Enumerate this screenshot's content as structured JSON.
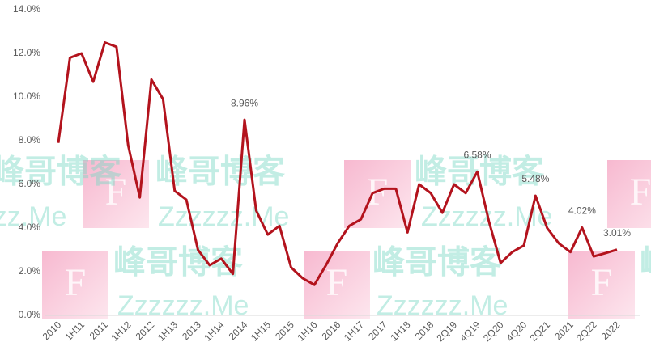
{
  "chart_data": {
    "type": "line",
    "categories": [
      "2010",
      null,
      "1H11",
      null,
      "2011",
      null,
      "1H12",
      null,
      "2012",
      null,
      "1H13",
      null,
      "2013",
      null,
      "1H14",
      null,
      "2014",
      null,
      "1H15",
      null,
      "2015",
      null,
      "1H16",
      null,
      "2016",
      null,
      "1H17",
      null,
      "2017",
      null,
      "1H18",
      null,
      "2018",
      null,
      "2Q19",
      null,
      "4Q19",
      null,
      "2Q20",
      null,
      "4Q20",
      null,
      "2Q21",
      null,
      "2021",
      null,
      "2Q22",
      null,
      "2022"
    ],
    "series": [
      {
        "color": "#b3131d",
        "values": [
          7.9,
          11.8,
          12.0,
          10.7,
          12.5,
          12.3,
          7.8,
          5.4,
          10.8,
          9.9,
          5.7,
          5.3,
          3.0,
          2.3,
          2.6,
          1.9,
          8.96,
          4.8,
          3.7,
          4.1,
          2.2,
          1.7,
          1.4,
          2.3,
          3.3,
          4.1,
          4.4,
          5.6,
          5.8,
          5.8,
          3.8,
          6.0,
          5.6,
          4.7,
          6.0,
          5.6,
          6.58,
          4.3,
          2.4,
          2.9,
          3.2,
          5.48,
          4.0,
          3.3,
          2.9,
          4.02,
          2.7,
          2.85,
          3.01
        ],
        "value_labels": [
          null,
          null,
          null,
          null,
          null,
          null,
          null,
          null,
          null,
          null,
          null,
          null,
          null,
          null,
          null,
          null,
          "8.96%",
          null,
          null,
          null,
          null,
          null,
          null,
          null,
          null,
          null,
          null,
          null,
          null,
          null,
          null,
          null,
          null,
          null,
          null,
          null,
          "6.58%",
          null,
          null,
          null,
          null,
          "5.48%",
          null,
          null,
          null,
          "4.02%",
          null,
          null,
          "3.01%"
        ]
      }
    ],
    "ylim": [
      0,
      14
    ],
    "yticks": [
      {
        "value": 0,
        "label": "0.0%"
      },
      {
        "value": 2,
        "label": "2.0%"
      },
      {
        "value": 4,
        "label": "4.0%"
      },
      {
        "value": 6,
        "label": "6.0%"
      },
      {
        "value": 8,
        "label": "8.0%"
      },
      {
        "value": 10,
        "label": "10.0%"
      },
      {
        "value": 12,
        "label": "12.0%"
      },
      {
        "value": 14,
        "label": "14.0%"
      }
    ],
    "grid": false
  },
  "watermark": {
    "logo": "F",
    "name": "峰哥博客",
    "site": "Zzzzzz.Me"
  }
}
